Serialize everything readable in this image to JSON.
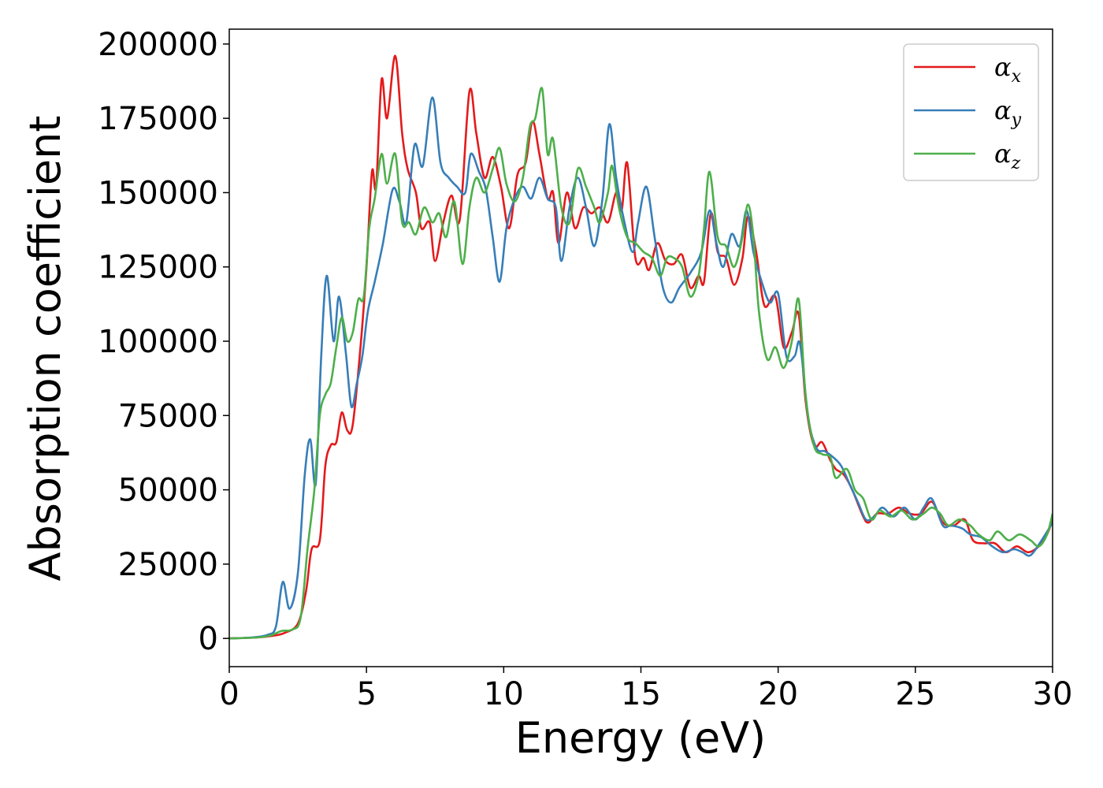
{
  "chart_data": {
    "type": "line",
    "title": "",
    "xlabel": "Energy (eV)",
    "ylabel": "Absorption coefficient",
    "xlim": [
      0,
      30
    ],
    "ylim": [
      -9500,
      205000
    ],
    "xticks": [
      0,
      5,
      10,
      15,
      20,
      25,
      30
    ],
    "yticks": [
      0,
      25000,
      50000,
      75000,
      100000,
      125000,
      150000,
      175000,
      200000
    ],
    "grid": false,
    "legend_position": "top-right",
    "series": [
      {
        "name": "α",
        "subscript": "x",
        "color": "#e41a1c",
        "points": [
          [
            0,
            0
          ],
          [
            1,
            300
          ],
          [
            1.5,
            800
          ],
          [
            2,
            1800
          ],
          [
            2.5,
            5000
          ],
          [
            2.8,
            16000
          ],
          [
            3.0,
            30000
          ],
          [
            3.3,
            33000
          ],
          [
            3.5,
            58000
          ],
          [
            3.7,
            65000
          ],
          [
            3.9,
            66000
          ],
          [
            4.1,
            76000
          ],
          [
            4.3,
            70000
          ],
          [
            4.5,
            72000
          ],
          [
            4.8,
            100000
          ],
          [
            5.0,
            125000
          ],
          [
            5.2,
            157000
          ],
          [
            5.35,
            152000
          ],
          [
            5.55,
            188000
          ],
          [
            5.75,
            175000
          ],
          [
            6.05,
            196000
          ],
          [
            6.3,
            170000
          ],
          [
            6.5,
            158000
          ],
          [
            6.8,
            150000
          ],
          [
            7.0,
            138000
          ],
          [
            7.3,
            140000
          ],
          [
            7.5,
            127000
          ],
          [
            7.8,
            140000
          ],
          [
            8.1,
            149000
          ],
          [
            8.4,
            141000
          ],
          [
            8.75,
            184000
          ],
          [
            9.0,
            170000
          ],
          [
            9.3,
            155000
          ],
          [
            9.6,
            162000
          ],
          [
            9.9,
            152000
          ],
          [
            10.2,
            138000
          ],
          [
            10.5,
            156000
          ],
          [
            10.8,
            160000
          ],
          [
            11.05,
            174000
          ],
          [
            11.3,
            163000
          ],
          [
            11.6,
            148000
          ],
          [
            11.8,
            150000
          ],
          [
            12.0,
            133000
          ],
          [
            12.3,
            150000
          ],
          [
            12.6,
            138000
          ],
          [
            12.9,
            145000
          ],
          [
            13.2,
            143000
          ],
          [
            13.5,
            145000
          ],
          [
            13.8,
            140000
          ],
          [
            14.1,
            150000
          ],
          [
            14.3,
            144000
          ],
          [
            14.5,
            160000
          ],
          [
            14.8,
            128000
          ],
          [
            15.1,
            128000
          ],
          [
            15.3,
            124000
          ],
          [
            15.6,
            133000
          ],
          [
            15.9,
            127000
          ],
          [
            16.2,
            126000
          ],
          [
            16.5,
            129000
          ],
          [
            16.8,
            118000
          ],
          [
            17.1,
            122000
          ],
          [
            17.3,
            120000
          ],
          [
            17.55,
            143000
          ],
          [
            17.8,
            130000
          ],
          [
            18.1,
            128000
          ],
          [
            18.4,
            119000
          ],
          [
            18.7,
            128000
          ],
          [
            18.9,
            142000
          ],
          [
            19.2,
            130000
          ],
          [
            19.5,
            112000
          ],
          [
            19.9,
            115000
          ],
          [
            20.2,
            98000
          ],
          [
            20.5,
            103000
          ],
          [
            20.75,
            109000
          ],
          [
            21.0,
            80000
          ],
          [
            21.3,
            65000
          ],
          [
            21.6,
            66000
          ],
          [
            21.9,
            60000
          ],
          [
            22.1,
            57000
          ],
          [
            22.4,
            55000
          ],
          [
            22.7,
            50000
          ],
          [
            23.1,
            41000
          ],
          [
            23.3,
            39000
          ],
          [
            23.6,
            42000
          ],
          [
            24.0,
            42000
          ],
          [
            24.4,
            44000
          ],
          [
            24.8,
            42000
          ],
          [
            25.2,
            42000
          ],
          [
            25.6,
            46000
          ],
          [
            26.0,
            39000
          ],
          [
            26.4,
            38000
          ],
          [
            26.8,
            40000
          ],
          [
            27.1,
            33000
          ],
          [
            27.5,
            32000
          ],
          [
            27.9,
            32000
          ],
          [
            28.3,
            29000
          ],
          [
            28.7,
            31000
          ],
          [
            29.1,
            29000
          ],
          [
            29.5,
            31000
          ],
          [
            29.8,
            35000
          ],
          [
            30.0,
            40000
          ]
        ]
      },
      {
        "name": "α",
        "subscript": "y",
        "color": "#377eb8",
        "points": [
          [
            0,
            0
          ],
          [
            0.8,
            300
          ],
          [
            1.4,
            1200
          ],
          [
            1.7,
            4000
          ],
          [
            1.95,
            19000
          ],
          [
            2.2,
            10000
          ],
          [
            2.5,
            22000
          ],
          [
            2.75,
            55000
          ],
          [
            2.95,
            67000
          ],
          [
            3.15,
            52000
          ],
          [
            3.35,
            95000
          ],
          [
            3.55,
            122000
          ],
          [
            3.8,
            100000
          ],
          [
            4.0,
            115000
          ],
          [
            4.25,
            96000
          ],
          [
            4.45,
            78000
          ],
          [
            4.65,
            86000
          ],
          [
            4.85,
            95000
          ],
          [
            5.05,
            110000
          ],
          [
            5.3,
            120000
          ],
          [
            5.6,
            133000
          ],
          [
            5.95,
            151000
          ],
          [
            6.2,
            147000
          ],
          [
            6.45,
            140000
          ],
          [
            6.75,
            166000
          ],
          [
            7.05,
            159000
          ],
          [
            7.4,
            182000
          ],
          [
            7.7,
            160000
          ],
          [
            8.0,
            155000
          ],
          [
            8.3,
            152000
          ],
          [
            8.6,
            150000
          ],
          [
            8.8,
            163000
          ],
          [
            9.1,
            157000
          ],
          [
            9.35,
            151000
          ],
          [
            9.6,
            135000
          ],
          [
            9.85,
            120000
          ],
          [
            10.1,
            138000
          ],
          [
            10.4,
            148000
          ],
          [
            10.7,
            152000
          ],
          [
            11.0,
            148000
          ],
          [
            11.3,
            155000
          ],
          [
            11.6,
            148000
          ],
          [
            11.9,
            145000
          ],
          [
            12.1,
            127000
          ],
          [
            12.4,
            145000
          ],
          [
            12.7,
            155000
          ],
          [
            13.0,
            145000
          ],
          [
            13.3,
            132000
          ],
          [
            13.6,
            148000
          ],
          [
            13.85,
            173000
          ],
          [
            14.1,
            155000
          ],
          [
            14.4,
            140000
          ],
          [
            14.7,
            130000
          ],
          [
            14.9,
            140000
          ],
          [
            15.2,
            152000
          ],
          [
            15.5,
            135000
          ],
          [
            15.8,
            118000
          ],
          [
            16.1,
            113000
          ],
          [
            16.4,
            118000
          ],
          [
            16.8,
            123000
          ],
          [
            17.2,
            130000
          ],
          [
            17.5,
            144000
          ],
          [
            17.75,
            133000
          ],
          [
            18.0,
            125000
          ],
          [
            18.3,
            136000
          ],
          [
            18.6,
            132000
          ],
          [
            18.85,
            144000
          ],
          [
            19.1,
            130000
          ],
          [
            19.4,
            120000
          ],
          [
            19.7,
            113000
          ],
          [
            20.0,
            116000
          ],
          [
            20.3,
            95000
          ],
          [
            20.6,
            95000
          ],
          [
            20.8,
            99000
          ],
          [
            21.1,
            74000
          ],
          [
            21.4,
            64000
          ],
          [
            21.7,
            63000
          ],
          [
            22.0,
            61000
          ],
          [
            22.3,
            58000
          ],
          [
            22.6,
            52000
          ],
          [
            22.9,
            46000
          ],
          [
            23.2,
            40000
          ],
          [
            23.5,
            41000
          ],
          [
            23.8,
            44000
          ],
          [
            24.2,
            41000
          ],
          [
            24.6,
            44000
          ],
          [
            25.0,
            40000
          ],
          [
            25.3,
            44000
          ],
          [
            25.6,
            47000
          ],
          [
            26.0,
            38000
          ],
          [
            26.3,
            38000
          ],
          [
            26.7,
            37000
          ],
          [
            27.0,
            35000
          ],
          [
            27.4,
            34000
          ],
          [
            27.8,
            31000
          ],
          [
            28.2,
            29000
          ],
          [
            28.6,
            30000
          ],
          [
            28.9,
            29000
          ],
          [
            29.2,
            28000
          ],
          [
            29.6,
            33000
          ],
          [
            30.0,
            39000
          ]
        ]
      },
      {
        "name": "α",
        "subscript": "z",
        "color": "#4daf4a",
        "points": [
          [
            0,
            0
          ],
          [
            1,
            300
          ],
          [
            1.5,
            1000
          ],
          [
            1.9,
            2500
          ],
          [
            2.3,
            3000
          ],
          [
            2.6,
            7000
          ],
          [
            2.85,
            30000
          ],
          [
            3.1,
            50000
          ],
          [
            3.3,
            75000
          ],
          [
            3.5,
            82000
          ],
          [
            3.7,
            86000
          ],
          [
            3.9,
            98000
          ],
          [
            4.1,
            108000
          ],
          [
            4.3,
            100000
          ],
          [
            4.5,
            103000
          ],
          [
            4.7,
            114000
          ],
          [
            4.9,
            115000
          ],
          [
            5.1,
            138000
          ],
          [
            5.3,
            148000
          ],
          [
            5.55,
            163000
          ],
          [
            5.75,
            153000
          ],
          [
            6.05,
            163000
          ],
          [
            6.3,
            140000
          ],
          [
            6.55,
            140000
          ],
          [
            6.8,
            136000
          ],
          [
            7.1,
            145000
          ],
          [
            7.4,
            140000
          ],
          [
            7.65,
            143000
          ],
          [
            7.9,
            135000
          ],
          [
            8.2,
            147000
          ],
          [
            8.5,
            126000
          ],
          [
            8.75,
            145000
          ],
          [
            9.0,
            155000
          ],
          [
            9.3,
            150000
          ],
          [
            9.6,
            158000
          ],
          [
            9.85,
            165000
          ],
          [
            10.1,
            153000
          ],
          [
            10.4,
            147000
          ],
          [
            10.7,
            155000
          ],
          [
            10.95,
            172000
          ],
          [
            11.15,
            175000
          ],
          [
            11.4,
            185000
          ],
          [
            11.6,
            163000
          ],
          [
            11.8,
            168000
          ],
          [
            12.1,
            145000
          ],
          [
            12.4,
            140000
          ],
          [
            12.7,
            158000
          ],
          [
            13.0,
            152000
          ],
          [
            13.3,
            145000
          ],
          [
            13.5,
            140000
          ],
          [
            13.8,
            150000
          ],
          [
            13.95,
            159000
          ],
          [
            14.2,
            145000
          ],
          [
            14.5,
            135000
          ],
          [
            14.8,
            133000
          ],
          [
            15.1,
            130000
          ],
          [
            15.4,
            128000
          ],
          [
            15.7,
            122000
          ],
          [
            15.95,
            128000
          ],
          [
            16.2,
            128000
          ],
          [
            16.5,
            125000
          ],
          [
            16.8,
            115000
          ],
          [
            17.1,
            122000
          ],
          [
            17.3,
            138000
          ],
          [
            17.5,
            157000
          ],
          [
            17.8,
            135000
          ],
          [
            18.1,
            132000
          ],
          [
            18.4,
            125000
          ],
          [
            18.7,
            135000
          ],
          [
            18.9,
            146000
          ],
          [
            19.1,
            135000
          ],
          [
            19.3,
            110000
          ],
          [
            19.6,
            94000
          ],
          [
            19.9,
            98000
          ],
          [
            20.2,
            91000
          ],
          [
            20.5,
            100000
          ],
          [
            20.75,
            114000
          ],
          [
            21.0,
            82000
          ],
          [
            21.3,
            65000
          ],
          [
            21.6,
            62000
          ],
          [
            21.9,
            61000
          ],
          [
            22.1,
            54000
          ],
          [
            22.5,
            57000
          ],
          [
            22.8,
            50000
          ],
          [
            23.1,
            47000
          ],
          [
            23.4,
            40000
          ],
          [
            23.7,
            43000
          ],
          [
            24.1,
            41000
          ],
          [
            24.5,
            43000
          ],
          [
            24.9,
            40000
          ],
          [
            25.3,
            42000
          ],
          [
            25.6,
            44000
          ],
          [
            25.9,
            42000
          ],
          [
            26.2,
            38000
          ],
          [
            26.6,
            40000
          ],
          [
            27.0,
            38000
          ],
          [
            27.3,
            35000
          ],
          [
            27.7,
            33000
          ],
          [
            28.0,
            36000
          ],
          [
            28.4,
            33000
          ],
          [
            28.8,
            35000
          ],
          [
            29.2,
            33000
          ],
          [
            29.5,
            31000
          ],
          [
            29.8,
            35000
          ],
          [
            30.0,
            42000
          ]
        ]
      }
    ]
  }
}
